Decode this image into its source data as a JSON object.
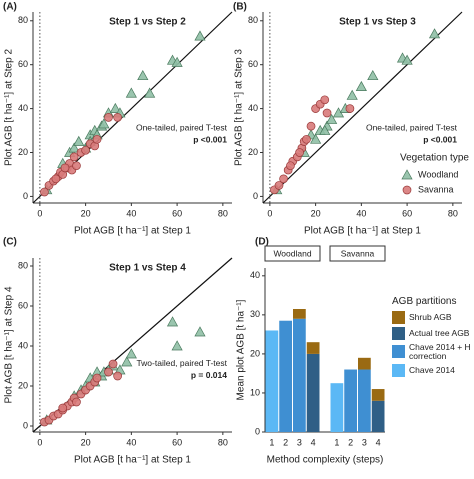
{
  "chart_data": [
    {
      "type": "scatter",
      "label": "(A)",
      "title": "Step 1 vs Step 2",
      "annotations": [
        "One-tailed, paired T-test",
        "p <0.001"
      ],
      "xlabel": "Plot AGB [t ha⁻¹] at Step 1",
      "ylabel": "Plot AGB [t ha⁻¹] at Step 2",
      "xlim": [
        -3,
        84
      ],
      "ylim": [
        -3,
        84
      ],
      "xticks": [
        0,
        20,
        40,
        60,
        80
      ],
      "yticks": [
        0,
        20,
        40,
        60,
        80
      ],
      "series": [
        {
          "marker": "triangle",
          "color": "#8fbfa5",
          "x": [
            3,
            10,
            13,
            15,
            17,
            20,
            22,
            24,
            25,
            27,
            30,
            33,
            35,
            40,
            45,
            48,
            58,
            60,
            70,
            22,
            28
          ],
          "values": [
            3,
            15,
            20,
            22,
            25,
            22,
            28,
            30,
            28,
            32,
            38,
            40,
            38,
            47,
            55,
            47,
            62,
            61,
            73,
            25,
            33
          ]
        },
        {
          "marker": "circle",
          "color": "#d87a7a",
          "x": [
            2,
            4,
            6,
            8,
            9,
            10,
            12,
            13,
            14,
            15,
            16,
            18,
            20,
            22,
            24,
            25,
            30,
            34,
            7,
            11
          ],
          "values": [
            2,
            5,
            7,
            9,
            11,
            10,
            13,
            15,
            12,
            18,
            14,
            20,
            21,
            24,
            23,
            26,
            36,
            36,
            8,
            13
          ]
        }
      ]
    },
    {
      "type": "scatter",
      "label": "(B)",
      "title": "Step 1 vs Step 3",
      "annotations": [
        "One-tailed, paired T-test",
        "p <0.001"
      ],
      "xlabel": "Plot AGB [t ha⁻¹] at Step 1",
      "ylabel": "Plot AGB [t ha⁻¹] at Step 3",
      "xlim": [
        -3,
        84
      ],
      "ylim": [
        -3,
        84
      ],
      "xticks": [
        0,
        20,
        40,
        60,
        80
      ],
      "yticks": [
        0,
        20,
        40,
        60,
        80
      ],
      "legend_title": "Vegetation type",
      "series": [
        {
          "name": "Woodland",
          "marker": "triangle",
          "color": "#8fbfa5",
          "x": [
            3,
            15,
            18,
            20,
            22,
            25,
            27,
            30,
            33,
            36,
            40,
            45,
            58,
            60,
            72,
            24
          ],
          "values": [
            3,
            20,
            28,
            26,
            30,
            32,
            35,
            38,
            40,
            46,
            50,
            55,
            63,
            62,
            74,
            30
          ]
        },
        {
          "name": "Savanna",
          "marker": "circle",
          "color": "#d87a7a",
          "x": [
            2,
            4,
            6,
            8,
            10,
            12,
            14,
            15,
            16,
            18,
            20,
            22,
            24,
            25,
            35,
            13,
            9
          ],
          "values": [
            3,
            5,
            8,
            12,
            16,
            18,
            22,
            25,
            26,
            32,
            40,
            42,
            44,
            38,
            40,
            20,
            14
          ]
        }
      ]
    },
    {
      "type": "scatter",
      "label": "(C)",
      "title": "Step 1 vs Step 4",
      "annotations": [
        "Two-tailed, paired T-test",
        "p = 0.014"
      ],
      "xlabel": "Plot AGB [t ha⁻¹] at Step 1",
      "ylabel": "Plot AGB [t ha⁻¹] at Step 4",
      "xlim": [
        -3,
        84
      ],
      "ylim": [
        -3,
        84
      ],
      "xticks": [
        0,
        20,
        40,
        60,
        80
      ],
      "yticks": [
        0,
        20,
        40,
        60,
        80
      ],
      "series": [
        {
          "marker": "triangle",
          "color": "#8fbfa5",
          "x": [
            3,
            15,
            18,
            20,
            22,
            24,
            25,
            27,
            30,
            32,
            35,
            38,
            40,
            58,
            60,
            70,
            28
          ],
          "values": [
            3,
            15,
            18,
            20,
            24,
            22,
            27,
            25,
            28,
            30,
            28,
            32,
            36,
            52,
            40,
            47,
            27
          ]
        },
        {
          "marker": "circle",
          "color": "#d87a7a",
          "x": [
            2,
            4,
            6,
            8,
            10,
            12,
            14,
            15,
            16,
            18,
            20,
            22,
            24,
            25,
            30,
            32,
            34,
            10
          ],
          "values": [
            2,
            3,
            5,
            6,
            8,
            10,
            12,
            14,
            12,
            16,
            18,
            20,
            22,
            24,
            27,
            31,
            25,
            9
          ]
        }
      ]
    },
    {
      "type": "stacked_bar",
      "label": "(D)",
      "facets": [
        "Woodland",
        "Savanna"
      ],
      "categories": [
        "1",
        "2",
        "3",
        "4",
        "1",
        "2",
        "3",
        "4"
      ],
      "xlabel": "Method complexity (steps)",
      "ylabel": "Mean plot AGB [t ha⁻¹]",
      "ylim": [
        0,
        42
      ],
      "yticks": [
        0,
        10,
        20,
        30,
        40
      ],
      "legend_title": "AGB partitions",
      "series": [
        {
          "name": "Chave 2014",
          "color": "#5bb8f5",
          "values": [
            26,
            null,
            null,
            null,
            12.5,
            null,
            null,
            null
          ]
        },
        {
          "name": "Chave 2014 + H correction",
          "color": "#3f8fd2",
          "values": [
            null,
            28.5,
            29,
            null,
            null,
            16,
            16,
            null
          ]
        },
        {
          "name": "Actual tree AGB",
          "color": "#2f5f86",
          "values": [
            null,
            null,
            null,
            20,
            null,
            null,
            null,
            8
          ]
        },
        {
          "name": "Shrub AGB",
          "color": "#9a6a12",
          "values": [
            null,
            null,
            2.5,
            3,
            null,
            null,
            3,
            3
          ]
        }
      ]
    }
  ]
}
